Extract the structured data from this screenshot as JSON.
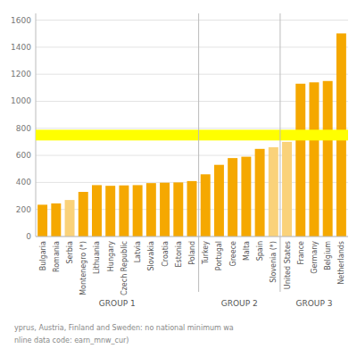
{
  "chart_data": {
    "type": "bar",
    "categories": [
      "Bulgaria",
      "Romania",
      "Serbia",
      "Montenegro (*)",
      "Lithuania",
      "Hungary",
      "Czech Republic",
      "Latvia",
      "Slovakia",
      "Croatia",
      "Estonia",
      "Poland",
      "Turkey",
      "Portugal",
      "Greece",
      "Malta",
      "Spain",
      "Slovenia (*)",
      "United States",
      "France",
      "Germany",
      "Belgium",
      "Netherlands"
    ],
    "values": [
      235,
      245,
      270,
      330,
      380,
      375,
      378,
      380,
      395,
      398,
      400,
      410,
      460,
      530,
      580,
      590,
      648,
      660,
      700,
      1130,
      1140,
      1150,
      1502
    ],
    "colors": [
      "#F5A800",
      "#F5A800",
      "#FAD27A",
      "#F5A800",
      "#F5A800",
      "#F5A800",
      "#F5A800",
      "#F5A800",
      "#F5A800",
      "#F5A800",
      "#F5A800",
      "#F5A800",
      "#F5A800",
      "#F5A800",
      "#F5A800",
      "#F5A800",
      "#F5A800",
      "#FAD27A",
      "#FAD27A",
      "#F5A800",
      "#F5A800",
      "#F5A800",
      "#F5A800"
    ],
    "groups": [
      {
        "label": "GROUP 1",
        "start": 0,
        "end": 11
      },
      {
        "label": "GROUP 2",
        "start": 12,
        "end": 17
      },
      {
        "label": "GROUP 3",
        "start": 18,
        "end": 22
      }
    ],
    "threshold": 750,
    "threshold_color": "#FFFF00",
    "annotations": [
      "yprus, Austria, Finland and Sweden: no national minimum wa",
      "nline data code: earn_mnw_cur)"
    ],
    "ylim": [
      0,
      1650
    ],
    "yticks": [
      0,
      200,
      400,
      600,
      800,
      1000,
      1200,
      1400,
      1600
    ],
    "grid": true
  }
}
